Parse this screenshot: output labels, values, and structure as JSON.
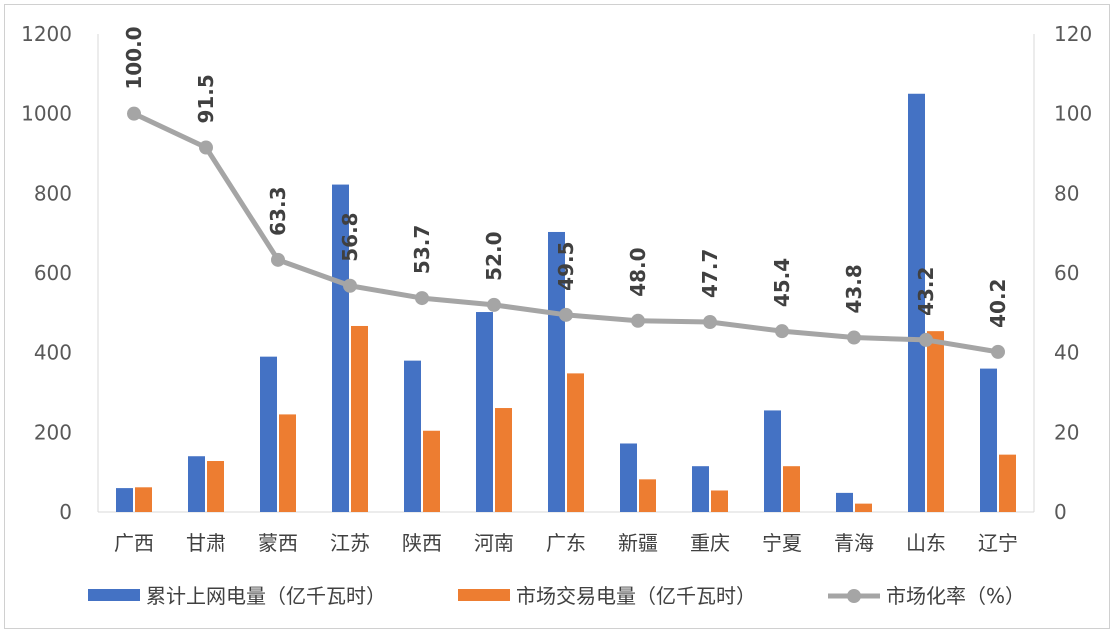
{
  "chart_data": {
    "type": "bar",
    "categories": [
      "广西",
      "甘肃",
      "蒙西",
      "江苏",
      "陕西",
      "河南",
      "广东",
      "新疆",
      "重庆",
      "宁夏",
      "青海",
      "山东",
      "辽宁"
    ],
    "series": [
      {
        "name": "累计上网电量（亿千瓦时）",
        "type": "bar",
        "axis": "left",
        "color": "#4472C4",
        "values": [
          60,
          140,
          390,
          822,
          380,
          502,
          703,
          172,
          115,
          255,
          48,
          1050,
          360
        ]
      },
      {
        "name": "市场交易电量（亿千瓦时）",
        "type": "bar",
        "axis": "left",
        "color": "#ED7D31",
        "values": [
          62,
          128,
          245,
          467,
          204,
          261,
          348,
          82,
          54,
          115,
          21,
          454,
          144
        ]
      },
      {
        "name": "市场化率（%）",
        "type": "line",
        "axis": "right",
        "color": "#A5A5A5",
        "values": [
          100.0,
          91.5,
          63.3,
          56.8,
          53.7,
          52.0,
          49.5,
          48.0,
          47.7,
          45.4,
          43.8,
          43.2,
          40.2
        ],
        "labels": [
          "100.0",
          "91.5",
          "63.3",
          "56.8",
          "53.7",
          "52.0",
          "49.5",
          "48.0",
          "47.7",
          "45.4",
          "43.8",
          "43.2",
          "40.2"
        ]
      }
    ],
    "y_left": {
      "min": 0,
      "max": 1200,
      "ticks": [
        "0",
        "200",
        "400",
        "600",
        "800",
        "1000",
        "1200"
      ]
    },
    "y_right": {
      "min": 0,
      "max": 120,
      "ticks": [
        "0",
        "20",
        "40",
        "60",
        "80",
        "100",
        "120"
      ]
    },
    "legend": {
      "position": "bottom"
    },
    "grid": false
  }
}
